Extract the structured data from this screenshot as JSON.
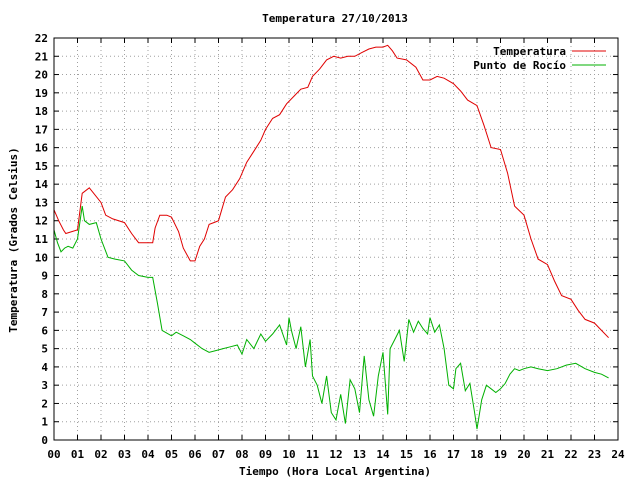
{
  "chart_data": {
    "type": "line",
    "title": "Temperatura 27/10/2013",
    "xlabel": "Tiempo (Hora Local Argentina)",
    "ylabel": "Temperatura (Grados Celsius)",
    "xlim": [
      0,
      24
    ],
    "ylim": [
      0,
      22
    ],
    "grid": true,
    "legend_position": "top-right",
    "x_ticks": [
      "00",
      "01",
      "02",
      "03",
      "04",
      "05",
      "06",
      "07",
      "08",
      "09",
      "10",
      "11",
      "12",
      "13",
      "14",
      "15",
      "16",
      "17",
      "18",
      "19",
      "20",
      "21",
      "22",
      "23",
      "24"
    ],
    "y_ticks": [
      0,
      1,
      2,
      3,
      4,
      5,
      6,
      7,
      8,
      9,
      10,
      11,
      12,
      13,
      14,
      15,
      16,
      17,
      18,
      19,
      20,
      21,
      22
    ],
    "series": [
      {
        "name": "Temperatura",
        "color": "#e00000",
        "x": [
          0.0,
          0.2,
          0.4,
          0.5,
          1.0,
          1.2,
          1.5,
          2.0,
          2.2,
          2.5,
          3.0,
          3.3,
          3.6,
          4.0,
          4.2,
          4.3,
          4.5,
          4.8,
          5.0,
          5.3,
          5.5,
          5.8,
          6.0,
          6.2,
          6.4,
          6.6,
          6.8,
          7.0,
          7.3,
          7.6,
          7.9,
          8.2,
          8.5,
          8.8,
          9.0,
          9.3,
          9.6,
          9.9,
          10.2,
          10.5,
          10.8,
          11.0,
          11.3,
          11.6,
          11.9,
          12.2,
          12.5,
          12.8,
          13.1,
          13.4,
          13.7,
          14.0,
          14.2,
          14.4,
          14.6,
          15.0,
          15.4,
          15.7,
          16.0,
          16.3,
          16.6,
          17.0,
          17.3,
          17.6,
          18.0,
          18.3,
          18.6,
          19.0,
          19.3,
          19.6,
          20.0,
          20.3,
          20.6,
          21.0,
          21.3,
          21.6,
          22.0,
          22.3,
          22.6,
          23.0,
          23.3,
          23.6
        ],
        "values": [
          12.6,
          12.0,
          11.5,
          11.3,
          11.5,
          13.5,
          13.8,
          13.0,
          12.3,
          12.1,
          11.9,
          11.3,
          10.8,
          10.8,
          10.8,
          11.6,
          12.3,
          12.3,
          12.2,
          11.4,
          10.5,
          9.8,
          9.8,
          10.6,
          11.0,
          11.8,
          11.9,
          12.0,
          13.3,
          13.7,
          14.3,
          15.2,
          15.8,
          16.4,
          17.0,
          17.6,
          17.8,
          18.4,
          18.8,
          19.2,
          19.3,
          19.9,
          20.3,
          20.8,
          21.0,
          20.9,
          21.0,
          21.0,
          21.2,
          21.4,
          21.5,
          21.5,
          21.6,
          21.3,
          20.9,
          20.8,
          20.4,
          19.7,
          19.7,
          19.9,
          19.8,
          19.5,
          19.1,
          18.6,
          18.3,
          17.2,
          16.0,
          15.9,
          14.6,
          12.8,
          12.3,
          11.0,
          9.9,
          9.6,
          8.7,
          7.9,
          7.7,
          7.1,
          6.6,
          6.4,
          6.0,
          5.6
        ]
      },
      {
        "name": "Punto de Rocío",
        "color": "#00b000",
        "x": [
          0.0,
          0.15,
          0.3,
          0.45,
          0.6,
          0.8,
          1.0,
          1.2,
          1.3,
          1.5,
          1.8,
          2.0,
          2.3,
          2.6,
          3.0,
          3.3,
          3.6,
          4.0,
          4.2,
          4.4,
          4.6,
          5.0,
          5.2,
          5.5,
          5.8,
          6.0,
          6.3,
          6.6,
          6.9,
          7.2,
          7.5,
          7.8,
          8.0,
          8.2,
          8.5,
          8.8,
          9.0,
          9.3,
          9.6,
          9.9,
          10.0,
          10.1,
          10.3,
          10.5,
          10.7,
          10.9,
          11.0,
          11.2,
          11.4,
          11.6,
          11.8,
          12.0,
          12.2,
          12.4,
          12.6,
          12.8,
          13.0,
          13.2,
          13.4,
          13.6,
          13.8,
          14.0,
          14.2,
          14.3,
          14.5,
          14.7,
          14.9,
          15.1,
          15.3,
          15.5,
          15.7,
          15.9,
          16.0,
          16.2,
          16.4,
          16.6,
          16.8,
          17.0,
          17.1,
          17.3,
          17.5,
          17.7,
          17.9,
          18.0,
          18.2,
          18.4,
          18.6,
          18.8,
          19.0,
          19.2,
          19.4,
          19.6,
          19.8,
          20.0,
          20.3,
          20.6,
          21.0,
          21.4,
          21.8,
          22.2,
          22.6,
          23.0,
          23.3,
          23.6
        ],
        "values": [
          11.5,
          10.8,
          10.3,
          10.5,
          10.6,
          10.5,
          11.0,
          12.8,
          12.0,
          11.8,
          11.9,
          11.0,
          10.0,
          9.9,
          9.8,
          9.3,
          9.0,
          8.9,
          8.9,
          7.5,
          6.0,
          5.7,
          5.9,
          5.7,
          5.5,
          5.3,
          5.0,
          4.8,
          4.9,
          5.0,
          5.1,
          5.2,
          4.7,
          5.5,
          5.0,
          5.8,
          5.4,
          5.8,
          6.3,
          5.2,
          6.7,
          6.0,
          5.0,
          6.2,
          4.0,
          5.5,
          3.5,
          3.0,
          2.0,
          3.5,
          1.5,
          1.1,
          2.5,
          0.9,
          3.3,
          2.8,
          1.5,
          4.6,
          2.2,
          1.3,
          3.5,
          4.8,
          1.4,
          5.0,
          5.5,
          6.0,
          4.3,
          6.6,
          5.9,
          6.5,
          6.1,
          5.8,
          6.7,
          5.9,
          6.3,
          5.0,
          3.0,
          2.8,
          3.9,
          4.2,
          2.7,
          3.1,
          1.5,
          0.6,
          2.2,
          3.0,
          2.8,
          2.6,
          2.8,
          3.1,
          3.6,
          3.9,
          3.8,
          3.9,
          4.0,
          3.9,
          3.8,
          3.9,
          4.1,
          4.2,
          3.9,
          3.7,
          3.6,
          3.4
        ]
      }
    ]
  }
}
